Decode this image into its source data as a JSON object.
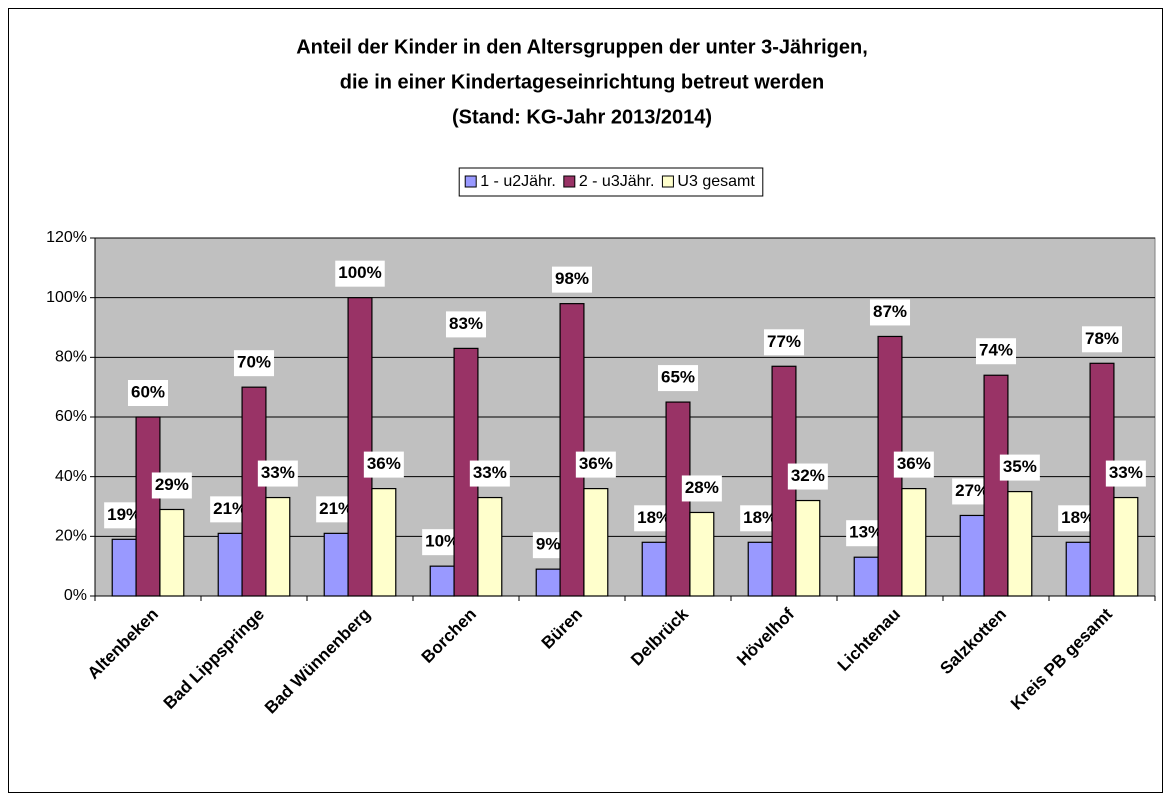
{
  "chart_data": {
    "type": "bar",
    "title": [
      "Anteil der Kinder in den Altersgruppen der unter 3-Jährigen,",
      "die in einer Kindertageseinrichtung betreut werden",
      "(Stand: KG-Jahr 2013/2014)"
    ],
    "categories": [
      "Altenbeken",
      "Bad Lippspringe",
      "Bad Wünnenberg",
      "Borchen",
      "Büren",
      "Delbrück",
      "Hövelhof",
      "Lichtenau",
      "Salzkotten",
      "Kreis PB gesamt"
    ],
    "series": [
      {
        "name": "1 - u2Jähr.",
        "color": "#9999ff",
        "values": [
          19,
          21,
          21,
          10,
          9,
          18,
          18,
          13,
          27,
          18
        ],
        "value_labels": [
          "19%",
          "21%",
          "21%",
          "10%",
          "9%",
          "18%",
          "18%",
          "13%",
          "27%",
          "18%"
        ]
      },
      {
        "name": "2 - u3Jähr.",
        "color": "#993366",
        "values": [
          60,
          70,
          100,
          83,
          98,
          65,
          77,
          87,
          74,
          78
        ],
        "value_labels": [
          "60%",
          "70%",
          "100%",
          "83%",
          "98%",
          "65%",
          "77%",
          "87%",
          "74%",
          "78%"
        ]
      },
      {
        "name": "U3 gesamt",
        "color": "#ffffcc",
        "values": [
          29,
          33,
          36,
          33,
          36,
          28,
          32,
          36,
          35,
          33
        ],
        "value_labels": [
          "29%",
          "33%",
          "36%",
          "33%",
          "36%",
          "28%",
          "32%",
          "36%",
          "35%",
          "33%"
        ]
      }
    ],
    "ylim": [
      0,
      120
    ],
    "yticks": [
      {
        "value": 0,
        "label": "0%"
      },
      {
        "value": 20,
        "label": "20%"
      },
      {
        "value": 40,
        "label": "40%"
      },
      {
        "value": 60,
        "label": "60%"
      },
      {
        "value": 80,
        "label": "80%"
      },
      {
        "value": 100,
        "label": "100%"
      },
      {
        "value": 120,
        "label": "120%"
      }
    ],
    "grid": true,
    "legend": "top",
    "plot_background": "#c0c0c0"
  }
}
